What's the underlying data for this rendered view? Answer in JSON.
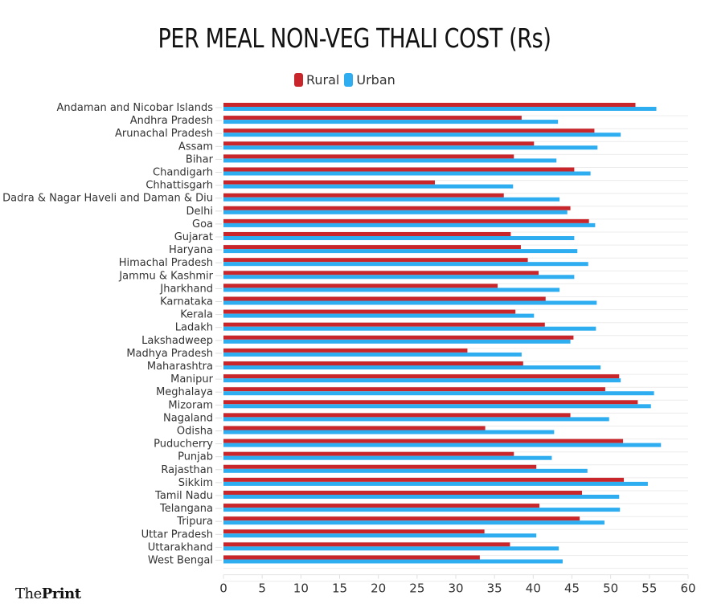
{
  "chart_data": {
    "type": "bar",
    "orientation": "horizontal",
    "title": "PER MEAL NON-VEG THALI COST (Rs)",
    "xlabel": "",
    "ylabel": "",
    "xlim": [
      0,
      60
    ],
    "x_ticks": [
      0,
      5,
      10,
      15,
      20,
      25,
      30,
      35,
      40,
      45,
      50,
      55,
      60
    ],
    "grid": true,
    "legend_position": "top-center",
    "categories": [
      "Andaman and Nicobar Islands",
      "Andhra Pradesh",
      "Arunachal Pradesh",
      "Assam",
      "Bihar",
      "Chandigarh",
      "Chhattisgarh",
      "Dadra & Nagar Haveli and Daman & Diu",
      "Delhi",
      "Goa",
      "Gujarat",
      "Haryana",
      "Himachal Pradesh",
      "Jammu & Kashmir",
      "Jharkhand",
      "Karnataka",
      "Kerala",
      "Ladakh",
      "Lakshadweep",
      "Madhya Pradesh",
      "Maharashtra",
      "Manipur",
      "Meghalaya",
      "Mizoram",
      "Nagaland",
      "Odisha",
      "Puducherry",
      "Punjab",
      "Rajasthan",
      "Sikkim",
      "Tamil Nadu",
      "Telangana",
      "Tripura",
      "Uttar Pradesh",
      "Uttarakhand",
      "West Bengal"
    ],
    "series": [
      {
        "name": "Rural",
        "color": "#c9262c",
        "values": [
          53.2,
          38.5,
          47.9,
          40.1,
          37.5,
          45.3,
          27.3,
          36.2,
          44.8,
          47.2,
          37.1,
          38.4,
          39.3,
          40.7,
          35.4,
          41.6,
          37.7,
          41.5,
          45.2,
          31.5,
          38.7,
          51.1,
          49.3,
          53.5,
          44.8,
          33.8,
          51.6,
          37.5,
          40.4,
          51.7,
          46.3,
          40.8,
          46.0,
          33.7,
          37.0,
          33.1
        ]
      },
      {
        "name": "Urban",
        "color": "#2eaef0",
        "values": [
          55.9,
          43.2,
          51.3,
          48.3,
          43.0,
          47.4,
          37.4,
          43.4,
          44.4,
          48.0,
          45.3,
          45.7,
          47.1,
          45.3,
          43.4,
          48.2,
          40.1,
          48.1,
          44.8,
          38.5,
          48.7,
          51.3,
          55.6,
          55.2,
          49.8,
          42.7,
          56.5,
          42.4,
          47.0,
          54.8,
          51.1,
          51.2,
          49.2,
          40.4,
          43.3,
          43.8
        ]
      }
    ]
  },
  "brand": {
    "prefix": "The",
    "bold": "Print"
  }
}
